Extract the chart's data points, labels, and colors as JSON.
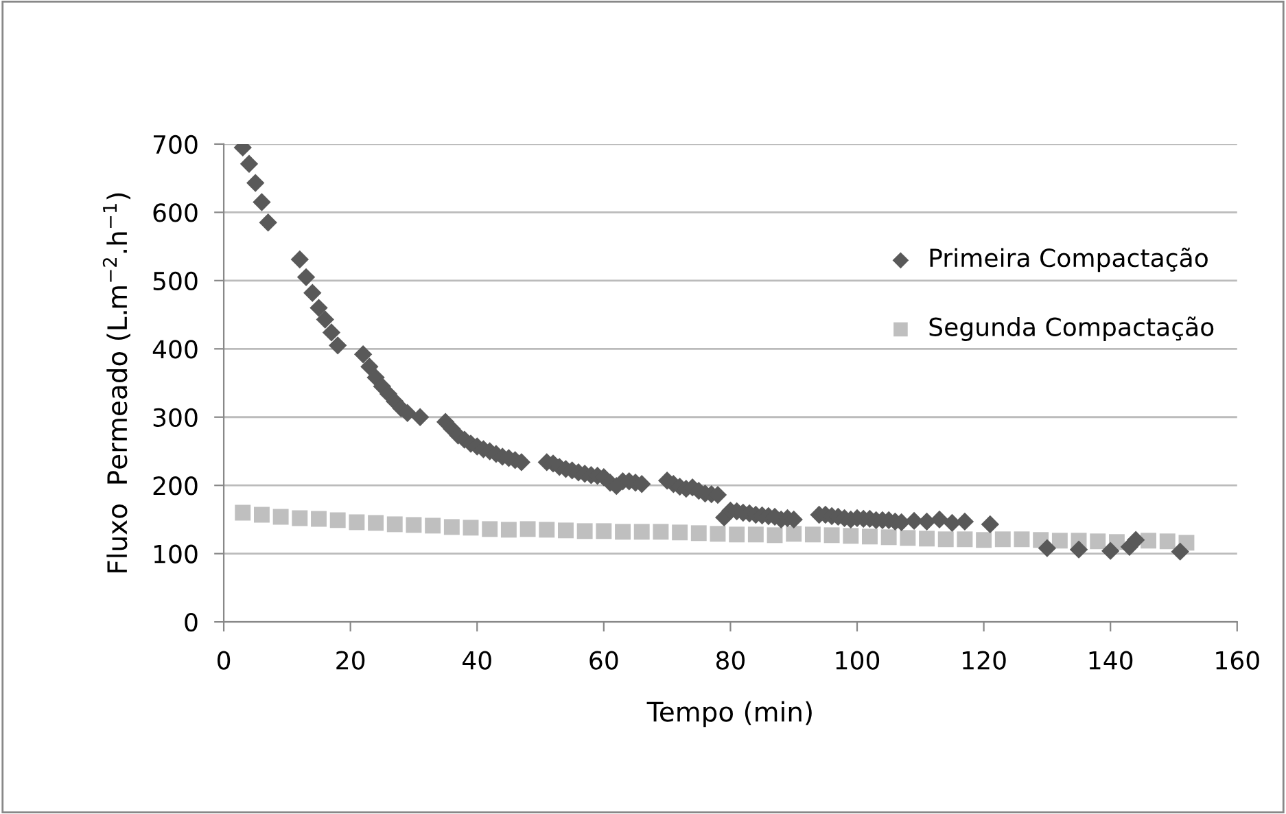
{
  "chart_data": {
    "type": "scatter",
    "xlabel": "Tempo (min)",
    "ylabel": "Fluxo  Permeado (L.m$^{−2}$.h$^{−1}$)",
    "xlim": [
      0,
      160
    ],
    "xticks": [
      0,
      20,
      40,
      60,
      80,
      100,
      120,
      140,
      160
    ],
    "ylim": [
      0,
      700
    ],
    "yticks": [
      0,
      100,
      200,
      300,
      400,
      500,
      600,
      700
    ],
    "grid": "y",
    "legend": "right",
    "series": [
      {
        "name": "Primeira Compactação",
        "color": "#595959",
        "marker": "diamond",
        "x": [
          3,
          4,
          5,
          6,
          7,
          12,
          13,
          14,
          15,
          16,
          17,
          18,
          22,
          23,
          24,
          25,
          26,
          27,
          28,
          29,
          31,
          35,
          36,
          37,
          38,
          39,
          40,
          41,
          42,
          43,
          44,
          45,
          46,
          47,
          51,
          52,
          53,
          54,
          55,
          56,
          57,
          58,
          59,
          60,
          61,
          62,
          63,
          64,
          65,
          66,
          70,
          71,
          72,
          73,
          74,
          75,
          76,
          77,
          78,
          79,
          80,
          81,
          82,
          83,
          84,
          85,
          86,
          87,
          88,
          89,
          90,
          94,
          95,
          96,
          97,
          98,
          99,
          100,
          101,
          102,
          103,
          104,
          105,
          106,
          107,
          109,
          111,
          113,
          115,
          117,
          121,
          130,
          135,
          140,
          143,
          144,
          151
        ],
        "values": [
          695,
          671,
          643,
          615,
          585,
          531,
          505,
          482,
          460,
          443,
          424,
          405,
          392,
          374,
          358,
          345,
          334,
          323,
          313,
          306,
          300,
          293,
          283,
          273,
          267,
          261,
          257,
          253,
          250,
          246,
          242,
          240,
          237,
          234,
          234,
          232,
          227,
          224,
          222,
          219,
          217,
          215,
          214,
          212,
          204,
          199,
          206,
          206,
          204,
          202,
          207,
          202,
          198,
          195,
          197,
          192,
          188,
          187,
          186,
          153,
          163,
          162,
          160,
          159,
          157,
          156,
          155,
          154,
          150,
          152,
          150,
          157,
          157,
          155,
          154,
          152,
          150,
          152,
          151,
          151,
          149,
          149,
          149,
          147,
          146,
          148,
          147,
          150,
          145,
          147,
          143,
          108,
          106,
          104,
          110,
          120,
          103
        ]
      },
      {
        "name": "Segunda Compactação",
        "color": "#bfbfbf",
        "marker": "square",
        "x": [
          3,
          6,
          9,
          12,
          15,
          18,
          21,
          24,
          27,
          30,
          33,
          36,
          39,
          42,
          45,
          48,
          51,
          54,
          57,
          60,
          63,
          66,
          69,
          72,
          75,
          78,
          81,
          84,
          87,
          90,
          93,
          96,
          99,
          102,
          105,
          108,
          111,
          114,
          117,
          120,
          123,
          126,
          129,
          132,
          135,
          138,
          141,
          146,
          149,
          152
        ],
        "values": [
          160,
          157,
          154,
          152,
          151,
          149,
          146,
          145,
          143,
          142,
          141,
          139,
          138,
          136,
          135,
          136,
          135,
          134,
          133,
          133,
          132,
          132,
          132,
          131,
          130,
          129,
          128,
          128,
          127,
          129,
          128,
          127,
          126,
          125,
          124,
          123,
          122,
          121,
          121,
          120,
          121,
          121,
          120,
          119,
          119,
          118,
          117,
          119,
          118,
          116
        ]
      }
    ]
  }
}
